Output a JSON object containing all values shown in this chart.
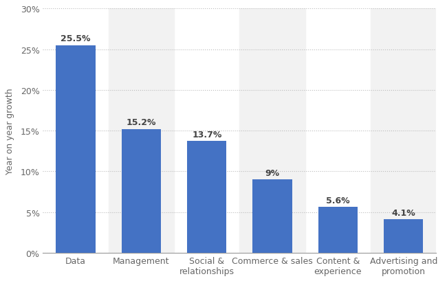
{
  "categories": [
    "Data",
    "Management",
    "Social &\nrelationships",
    "Commerce & sales",
    "Content &\nexperience",
    "Advertising and\npromotion"
  ],
  "values": [
    25.5,
    15.2,
    13.7,
    9.0,
    5.6,
    4.1
  ],
  "labels": [
    "25.5%",
    "15.2%",
    "13.7%",
    "9%",
    "5.6%",
    "4.1%"
  ],
  "bar_color": "#4472C4",
  "background_color": "#ffffff",
  "shade_color": "#f2f2f2",
  "grid_color": "#bbbbbb",
  "ylabel": "Year on year growth",
  "ylim": [
    0,
    30
  ],
  "yticks": [
    0,
    5,
    10,
    15,
    20,
    25,
    30
  ],
  "ytick_labels": [
    "0%",
    "5%",
    "10%",
    "15%",
    "20%",
    "25%",
    "30%"
  ],
  "label_fontsize": 9,
  "tick_fontsize": 9,
  "ylabel_fontsize": 9,
  "fig_width": 6.5,
  "fig_height": 4.1,
  "dpi": 100
}
